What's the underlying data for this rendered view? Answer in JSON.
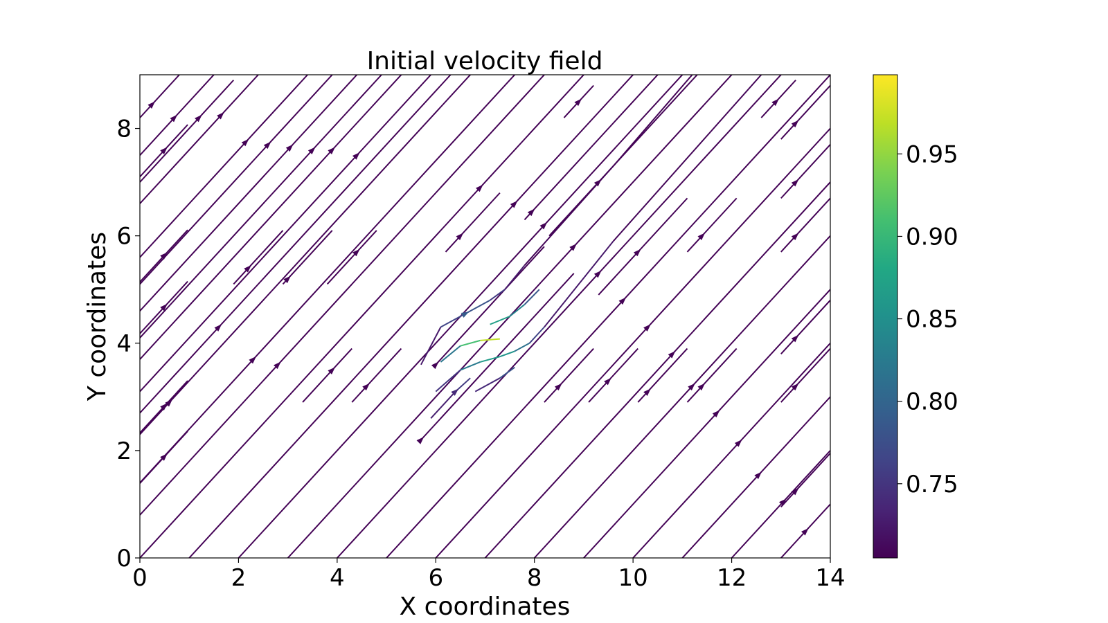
{
  "chart_data": {
    "type": "streamplot",
    "title": "Initial velocity field",
    "xlabel": "X coordinates",
    "ylabel": "Y coordinates",
    "xlim": [
      0,
      14
    ],
    "ylim": [
      0,
      9
    ],
    "xticks": [
      0,
      2,
      4,
      6,
      8,
      10,
      12,
      14
    ],
    "yticks": [
      0,
      2,
      4,
      6,
      8
    ],
    "colorbar": {
      "colormap": "viridis",
      "range": [
        0.705,
        0.998
      ],
      "ticks": [
        0.75,
        0.8,
        0.85,
        0.9,
        0.95
      ],
      "tick_labels": [
        "0.75",
        "0.80",
        "0.85",
        "0.90",
        "0.95"
      ]
    },
    "flow": {
      "direction": "diagonal toward upper-right (u = v)",
      "base_speed": 0.707,
      "obstacle_center": [
        6.9,
        4.0
      ],
      "max_speed": 0.998
    },
    "straight_lines": [
      {
        "intercept": -13.0,
        "x_range": [
          13.0,
          14.0
        ],
        "arrow_x": 13.5
      },
      {
        "intercept": -12.0,
        "x_range": [
          12.0,
          14.0
        ],
        "arrow_x": 13.05
      },
      {
        "intercept": -11.0,
        "x_range": [
          11.0,
          14.0
        ],
        "arrow_x": 12.55
      },
      {
        "intercept": -10.0,
        "x_range": [
          10.0,
          14.0
        ],
        "arrow_x": 12.15
      },
      {
        "intercept": -9.0,
        "x_range": [
          9.0,
          14.0
        ],
        "arrow_x": 11.7
      },
      {
        "intercept": -8.0,
        "x_range": [
          8.0,
          14.0
        ],
        "arrow_x": 11.2
      },
      {
        "intercept": -7.0,
        "x_range": [
          7.0,
          14.0
        ],
        "arrow_x": 10.8
      },
      {
        "intercept": -6.0,
        "x_range": [
          6.0,
          14.0
        ],
        "arrow_x": 10.3
      },
      {
        "intercept": -5.0,
        "x_range": [
          5.0,
          14.0
        ],
        "arrow_x": 9.8
      },
      {
        "intercept": -4.0,
        "x_range": [
          4.0,
          14.0
        ],
        "arrow_x": 9.3
      },
      {
        "intercept": -3.0,
        "x_range": [
          3.0,
          14.0
        ],
        "arrow_x": 8.8
      },
      {
        "intercept": -2.0,
        "x_range": [
          2.0,
          14.0
        ],
        "arrow_x": 8.2
      },
      {
        "intercept": -1.0,
        "x_range": [
          1.0,
          14.0
        ],
        "arrow_x": 7.6
      },
      {
        "intercept": 0.0,
        "x_range": [
          0.0,
          14.0
        ],
        "arrow_x": 6.9
      },
      {
        "intercept": 0.8,
        "x_range": [
          0.0,
          12.6
        ],
        "arrow_x": 2.8
      },
      {
        "intercept": 1.4,
        "x_range": [
          0.0,
          12.0
        ],
        "arrow_x": 2.3
      },
      {
        "intercept": 2.7,
        "x_range": [
          0.0,
          6.3
        ],
        "arrow_x": 1.6
      },
      {
        "intercept": -3.5,
        "x_range": [
          5.7,
          8.8
        ],
        "arrow_x": 5.7
      },
      {
        "intercept": 8.2,
        "x_range": [
          0.0,
          0.8
        ],
        "arrow_x": 0.25
      },
      {
        "intercept": 7.5,
        "x_range": [
          0.0,
          1.5
        ],
        "arrow_x": 0.7
      },
      {
        "intercept": 7.0,
        "x_range": [
          0.0,
          1.9
        ],
        "arrow_x": 1.2
      },
      {
        "intercept": 6.6,
        "x_range": [
          0.0,
          2.4
        ],
        "arrow_x": 1.65
      },
      {
        "intercept": 5.6,
        "x_range": [
          0.0,
          3.4
        ],
        "arrow_x": 2.15
      },
      {
        "intercept": 5.1,
        "x_range": [
          0.0,
          3.9
        ],
        "arrow_x": 2.6
      },
      {
        "intercept": 4.6,
        "x_range": [
          0.0,
          4.4
        ],
        "arrow_x": 3.05
      },
      {
        "intercept": 4.1,
        "x_range": [
          0.0,
          4.9
        ],
        "arrow_x": 3.5
      },
      {
        "intercept": 3.7,
        "x_range": [
          0.0,
          5.4
        ],
        "arrow_x": 3.9
      },
      {
        "intercept": 3.1,
        "x_range": [
          0.0,
          5.9
        ],
        "arrow_x": 4.4
      },
      {
        "intercept": 2.3,
        "x_range": [
          0.0,
          7.4
        ],
        "arrow_x": 0.6
      },
      {
        "intercept": 1.1,
        "x_range": [
          8.8,
          14.0
        ],
        "arrow_x": 10.5
      },
      {
        "intercept": 1.6,
        "x_range": [
          9.2,
          14.0
        ],
        "arrow_x": 11.0
      },
      {
        "intercept": 2.1,
        "x_range": [
          9.8,
          14.0
        ],
        "arrow_x": 11.5
      },
      {
        "intercept": 2.6,
        "x_range": [
          10.3,
          14.0
        ],
        "arrow_x": 12.0
      },
      {
        "intercept": 3.1,
        "x_range": [
          10.8,
          14.0
        ],
        "arrow_x": 12.4
      },
      {
        "intercept": 3.6,
        "x_range": [
          11.3,
          14.0
        ],
        "arrow_x": 12.8
      },
      {
        "intercept": 4.1,
        "x_range": [
          11.8,
          14.0
        ],
        "arrow_x": 13.2
      },
      {
        "intercept": 5.0,
        "x_range": [
          12.6,
          14.0
        ],
        "arrow_x": 13.4
      },
      {
        "intercept": -1.5,
        "x_range": [
          7.8,
          14.0
        ],
        "arrow_x": 7.95
      },
      {
        "intercept": -2.3,
        "x_range": [
          8.3,
          13.0
        ],
        "arrow_x": 9.3
      },
      {
        "intercept": 5.55,
        "x_range": [
          6.2,
          7.3
        ],
        "arrow_x": 6.6
      },
      {
        "intercept": -2.4,
        "x_range": [
          6.0,
          8.2
        ],
        "arrow_x": 6.0
      }
    ],
    "short_segments": [
      {
        "x": [
          0.0,
          0.97
        ],
        "y": [
          7.1,
          8.07
        ],
        "arrow_x": 0.5
      },
      {
        "x": [
          0.0,
          0.97
        ],
        "y": [
          5.14,
          6.11
        ],
        "arrow_x": 0.5
      },
      {
        "x": [
          0.0,
          0.97
        ],
        "y": [
          4.18,
          5.15
        ],
        "arrow_x": 0.5
      },
      {
        "x": [
          0.0,
          0.97
        ],
        "y": [
          2.33,
          3.3
        ],
        "arrow_x": 0.5
      },
      {
        "x": [
          0.0,
          0.97
        ],
        "y": [
          1.39,
          2.36
        ],
        "arrow_x": 0.5
      },
      {
        "x": [
          1.9,
          2.9
        ],
        "y": [
          5.1,
          6.1
        ],
        "arrow_x": 2.2
      },
      {
        "x": [
          2.9,
          3.9
        ],
        "y": [
          5.1,
          6.1
        ],
        "arrow_x": 3.0
      },
      {
        "x": [
          3.8,
          4.8
        ],
        "y": [
          5.1,
          6.1
        ],
        "arrow_x": 4.4
      },
      {
        "x": [
          3.3,
          4.3
        ],
        "y": [
          2.9,
          3.9
        ],
        "arrow_x": 3.9
      },
      {
        "x": [
          4.3,
          5.3
        ],
        "y": [
          2.9,
          3.9
        ],
        "arrow_x": 4.6
      },
      {
        "x": [
          6.2,
          7.3
        ],
        "y": [
          5.7,
          6.8
        ],
        "arrow_x": 6.5
      },
      {
        "x": [
          8.6,
          9.2
        ],
        "y": [
          8.2,
          8.8
        ],
        "arrow_x": 8.9
      },
      {
        "x": [
          8.2,
          9.2
        ],
        "y": [
          2.9,
          3.9
        ],
        "arrow_x": 8.5
      },
      {
        "x": [
          9.1,
          10.1
        ],
        "y": [
          2.9,
          3.9
        ],
        "arrow_x": 9.5
      },
      {
        "x": [
          10.1,
          11.1
        ],
        "y": [
          2.9,
          3.9
        ],
        "arrow_x": 10.3
      },
      {
        "x": [
          11.1,
          12.1
        ],
        "y": [
          2.9,
          3.9
        ],
        "arrow_x": 11.4
      },
      {
        "x": [
          11.1,
          12.1
        ],
        "y": [
          5.7,
          6.7
        ],
        "arrow_x": 11.4
      },
      {
        "x": [
          9.3,
          11.1
        ],
        "y": [
          4.9,
          6.7
        ],
        "arrow_x": 10.1
      },
      {
        "x": [
          12.6,
          13.3
        ],
        "y": [
          8.2,
          8.9
        ],
        "arrow_x": 12.9
      },
      {
        "x": [
          13.0,
          14.0
        ],
        "y": [
          7.8,
          8.8
        ],
        "arrow_x": 13.3
      },
      {
        "x": [
          13.0,
          14.0
        ],
        "y": [
          6.7,
          7.7
        ],
        "arrow_x": 13.3
      },
      {
        "x": [
          13.0,
          14.0
        ],
        "y": [
          5.7,
          6.7
        ],
        "arrow_x": 13.3
      },
      {
        "x": [
          13.0,
          14.0
        ],
        "y": [
          3.8,
          4.8
        ],
        "arrow_x": 13.3
      },
      {
        "x": [
          13.0,
          14.0
        ],
        "y": [
          2.9,
          3.9
        ],
        "arrow_x": 13.3
      },
      {
        "x": [
          13.0,
          14.0
        ],
        "y": [
          0.95,
          1.95
        ],
        "arrow_x": 13.3
      }
    ],
    "curved_lines": [
      {
        "points": [
          [
            5.7,
            3.6
          ],
          [
            6.1,
            4.3
          ],
          [
            6.6,
            4.55
          ],
          [
            7.1,
            4.8
          ],
          [
            7.4,
            5.0
          ],
          [
            7.8,
            5.45
          ],
          [
            9.6,
            7.3
          ],
          [
            11.2,
            9.0
          ]
        ],
        "speed": [
          0.71,
          0.74,
          0.79,
          0.77,
          0.74,
          0.71,
          0.707,
          0.707
        ],
        "arrow_index": 2
      },
      {
        "points": [
          [
            6.1,
            3.65
          ],
          [
            6.5,
            3.95
          ],
          [
            6.9,
            4.05
          ],
          [
            7.3,
            4.08
          ]
        ],
        "speed": [
          0.77,
          0.87,
          0.95,
          0.99
        ],
        "arrow_index": -1
      },
      {
        "points": [
          [
            6.0,
            3.1
          ],
          [
            6.5,
            3.5
          ],
          [
            6.9,
            3.65
          ],
          [
            7.3,
            3.75
          ],
          [
            7.6,
            3.85
          ],
          [
            7.9,
            4.0
          ],
          [
            8.2,
            4.3
          ],
          [
            9.6,
            5.9
          ],
          [
            12.6,
            9.0
          ]
        ],
        "speed": [
          0.71,
          0.79,
          0.86,
          0.87,
          0.84,
          0.79,
          0.74,
          0.71,
          0.707
        ],
        "arrow_index": -1
      },
      {
        "points": [
          [
            7.1,
            4.35
          ],
          [
            7.5,
            4.5
          ],
          [
            7.8,
            4.72
          ],
          [
            8.1,
            5.0
          ]
        ],
        "speed": [
          0.88,
          0.86,
          0.81,
          0.76
        ],
        "arrow_index": -1
      },
      {
        "points": [
          [
            5.9,
            2.6
          ],
          [
            6.4,
            3.1
          ],
          [
            6.7,
            3.35
          ]
        ],
        "speed": [
          0.72,
          0.74,
          0.77
        ],
        "arrow_index": 1
      },
      {
        "points": [
          [
            6.8,
            3.1
          ],
          [
            7.3,
            3.35
          ],
          [
            7.6,
            3.55
          ]
        ],
        "speed": [
          0.72,
          0.76,
          0.8
        ],
        "arrow_index": -1
      }
    ]
  }
}
